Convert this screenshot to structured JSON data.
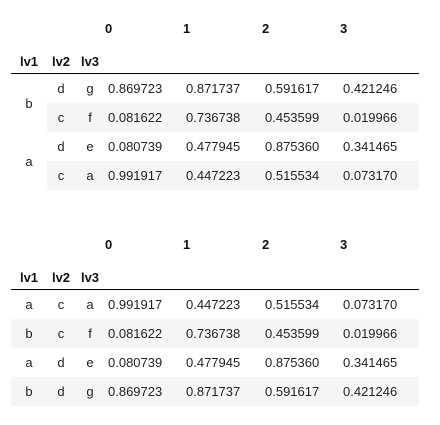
{
  "table1": {
    "columns": [
      "0",
      "1",
      "2",
      "3"
    ],
    "index_names": [
      "lv1",
      "lv2",
      "lv3"
    ],
    "rows": [
      {
        "lv1": "b",
        "lv2": "d",
        "lv3": "g",
        "values": [
          "0.869723",
          "0.871737",
          "0.591617",
          "0.421246"
        ]
      },
      {
        "lv1": "",
        "lv2": "c",
        "lv3": "f",
        "values": [
          "0.081622",
          "0.736738",
          "0.453599",
          "0.019966"
        ]
      },
      {
        "lv1": "a",
        "lv2": "d",
        "lv3": "e",
        "values": [
          "0.080739",
          "0.477945",
          "0.875360",
          "0.341465"
        ]
      },
      {
        "lv1": "",
        "lv2": "c",
        "lv3": "a",
        "values": [
          "0.991917",
          "0.447223",
          "0.515534",
          "0.073170"
        ]
      }
    ]
  },
  "table2": {
    "columns": [
      "0",
      "1",
      "2",
      "3"
    ],
    "index_names": [
      "lv1",
      "lv2",
      "lv3"
    ],
    "rows": [
      {
        "lv1": "a",
        "lv2": "c",
        "lv3": "a",
        "values": [
          "0.991917",
          "0.447223",
          "0.515534",
          "0.073170"
        ]
      },
      {
        "lv1": "b",
        "lv2": "c",
        "lv3": "f",
        "values": [
          "0.081622",
          "0.736738",
          "0.453599",
          "0.019966"
        ]
      },
      {
        "lv1": "a",
        "lv2": "d",
        "lv3": "e",
        "values": [
          "0.080739",
          "0.477945",
          "0.875360",
          "0.341465"
        ]
      },
      {
        "lv1": "b",
        "lv2": "d",
        "lv3": "g",
        "values": [
          "0.869723",
          "0.871737",
          "0.591617",
          "0.421246"
        ]
      }
    ]
  }
}
